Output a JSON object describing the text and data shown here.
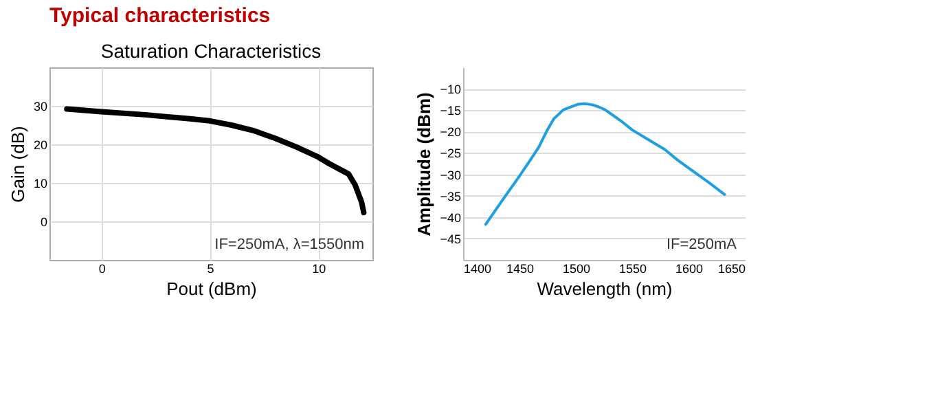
{
  "chart_data": [
    {
      "type": "other",
      "title": "Typical characteristics"
    },
    {
      "type": "line",
      "title": "Saturation Characteristics",
      "xlabel": "Pout (dBm)",
      "ylabel": "Gain (dB)",
      "x": [
        -1.6,
        0,
        2,
        4,
        5,
        6,
        7,
        7.5,
        8,
        9,
        10,
        10.5,
        11,
        11.4,
        11.7,
        12,
        12.1
      ],
      "series": [
        {
          "color": "#000000",
          "values": [
            29.2,
            28.5,
            27.7,
            26.7,
            26.1,
            25.0,
            23.6,
            22.6,
            21.6,
            19.3,
            16.7,
            15.0,
            13.5,
            12.3,
            9.5,
            5.0,
            2.3
          ]
        }
      ],
      "xlim": [
        -2.4,
        12.5
      ],
      "xticks": [
        0,
        5,
        10
      ],
      "ylim": [
        -10,
        40
      ],
      "yticks": [
        0,
        10,
        20,
        30
      ],
      "grid": true,
      "marker": "none",
      "line_style": "solid",
      "annotations": [
        "IF=250mA,  λ=1550nm"
      ]
    },
    {
      "type": "line",
      "xlabel": "Wavelength (nm)",
      "ylabel": "Amplitude (dBm)",
      "x": [
        1420,
        1435,
        1450,
        1460,
        1467,
        1475,
        1480.5,
        1489,
        1502,
        1508,
        1514,
        1520,
        1526,
        1540,
        1550,
        1565,
        1579,
        1590,
        1603,
        1618,
        1632
      ],
      "series": [
        {
          "color": "#1f9fe0",
          "values": [
            -41.7,
            -36.0,
            -30.4,
            -26.5,
            -23.7,
            -19.5,
            -17.0,
            -14.9,
            -13.6,
            -13.5,
            -13.7,
            -14.2,
            -14.9,
            -17.5,
            -19.6,
            -22.0,
            -24.2,
            -26.6,
            -29.1,
            -31.9,
            -34.7
          ]
        }
      ],
      "xlim": [
        1400,
        1650
      ],
      "xticks": [
        1400,
        1450,
        1500,
        1550,
        1600,
        1650
      ],
      "ylim": [
        -50,
        -5
      ],
      "yticks": [
        -45,
        -40,
        -35,
        -30,
        -25,
        -20,
        -15,
        -10
      ],
      "grid": "y",
      "marker": "none",
      "line_style": "solid",
      "annotations": [
        "IF=250mA"
      ]
    }
  ]
}
